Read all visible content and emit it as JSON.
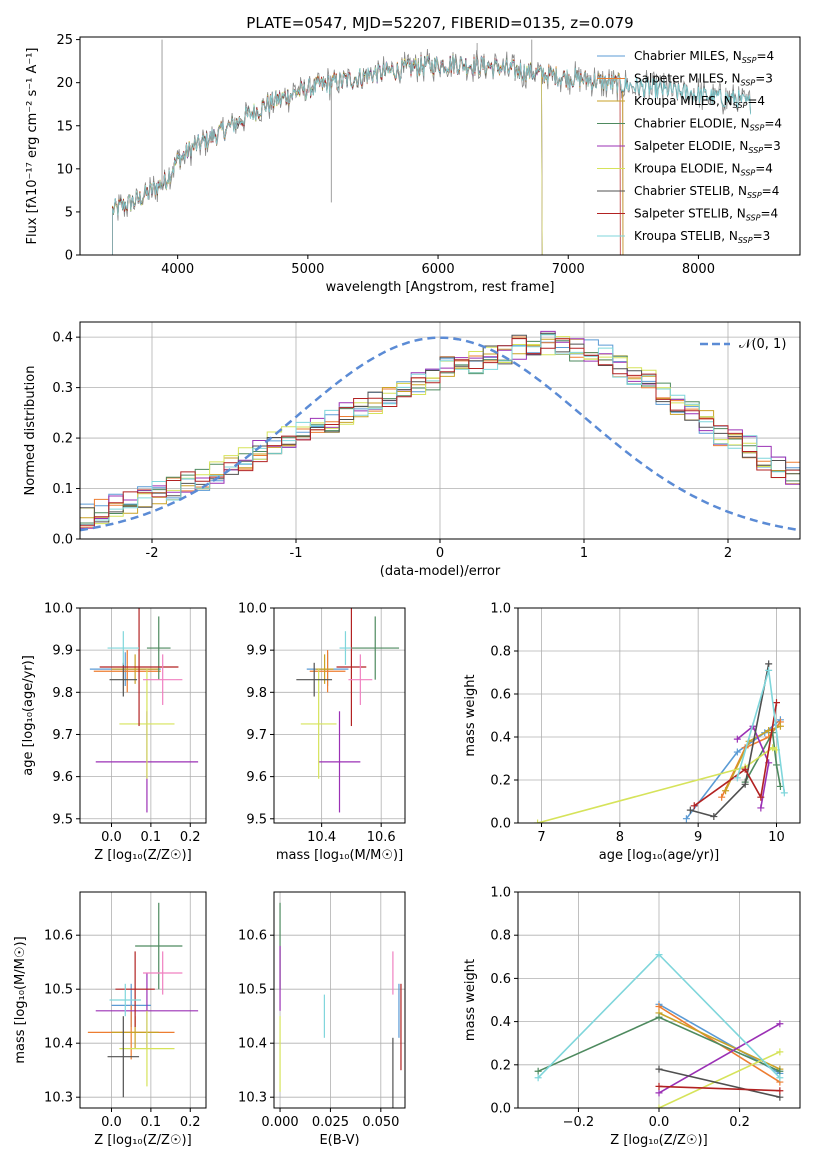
{
  "figure_title": "PLATE=0547, MJD=52207, FIBERID=0135, z=0.079",
  "colors": {
    "Chabrier MILES": "#5B9BD5",
    "Salpeter MILES": "#ED7D31",
    "Kroupa MILES": "#C9A227",
    "Chabrier ELODIE": "#4E8A5F",
    "Salpeter ELODIE": "#9B30B5",
    "Kroupa ELODIE": "#D6E35A",
    "Chabrier STELIB": "#505050",
    "Salpeter STELIB": "#B22222",
    "Kroupa STELIB": "#7FD6DB",
    "pink": "#F080C0",
    "gaussian": "#5B8BD5"
  },
  "chart_data": [
    {
      "id": "spectrum",
      "type": "line",
      "title": "PLATE=0547, MJD=52207, FIBERID=0135, z=0.079",
      "xlabel": "wavelength [Angstrom, rest frame]",
      "ylabel": "Flux [fλ10⁻¹⁷ erg cm⁻² s⁻¹ A⁻¹]",
      "xlim": [
        3250,
        8780
      ],
      "ylim": [
        0,
        25.3
      ],
      "xticks": [
        4000,
        5000,
        6000,
        7000,
        8000
      ],
      "yticks": [
        0,
        5,
        10,
        15,
        20,
        25
      ],
      "grid": false,
      "legend_position": "upper-right",
      "series": [
        {
          "name": "Chabrier MILES, N_SSP=4",
          "label_html": "Chabrier MILES, N<tspan font-size='9' dy='3'>SSP</tspan><tspan dy='-3'>=4</tspan>"
        },
        {
          "name": "Salpeter MILES, N_SSP=3"
        },
        {
          "name": "Kroupa MILES, N_SSP=4"
        },
        {
          "name": "Chabrier ELODIE, N_SSP=4"
        },
        {
          "name": "Salpeter ELODIE, N_SSP=3"
        },
        {
          "name": "Kroupa ELODIE, N_SSP=4"
        },
        {
          "name": "Chabrier STELIB, N_SSP=4"
        },
        {
          "name": "Salpeter STELIB, N_SSP=4"
        },
        {
          "name": "Kroupa STELIB, N_SSP=3"
        }
      ],
      "continuum": {
        "x": [
          3500,
          3700,
          3900,
          4000,
          4100,
          4300,
          4500,
          4700,
          4900,
          5100,
          5300,
          5500,
          5700,
          5900,
          6100,
          6300,
          6500,
          6700,
          6900,
          7100,
          7300,
          7500,
          7700,
          7900,
          8100,
          8300,
          8400
        ],
        "y": [
          5.2,
          6.5,
          8.5,
          11.0,
          12.3,
          14.0,
          15.8,
          17.6,
          18.8,
          19.7,
          20.3,
          21.0,
          21.5,
          22.0,
          22.2,
          22.0,
          21.7,
          21.2,
          20.8,
          20.4,
          20.0,
          19.6,
          19.2,
          18.8,
          18.4,
          18.0,
          17.5
        ]
      },
      "spikes": [
        {
          "x": 3880,
          "y": 25.0
        },
        {
          "x": 5180,
          "y": 6.1
        },
        {
          "x": 6720,
          "y": 25.0
        },
        {
          "x": 6300,
          "y": 24.6
        }
      ]
    },
    {
      "id": "residual_hist",
      "type": "step",
      "xlabel": "(data-model)/error",
      "ylabel": "Normed distribution",
      "xlim": [
        -2.5,
        2.5
      ],
      "ylim": [
        0,
        0.43
      ],
      "xticks": [
        -2,
        -1,
        0,
        1,
        2
      ],
      "yticks": [
        0.0,
        0.1,
        0.2,
        0.3,
        0.4
      ],
      "grid": true,
      "legend_position": "upper-right",
      "legend": "𝒩(0, 1)",
      "bin_width": 0.1,
      "bins_start": -2.5,
      "base_hist": [
        0.045,
        0.055,
        0.065,
        0.075,
        0.085,
        0.09,
        0.1,
        0.11,
        0.12,
        0.135,
        0.15,
        0.16,
        0.175,
        0.19,
        0.205,
        0.215,
        0.22,
        0.235,
        0.25,
        0.26,
        0.27,
        0.28,
        0.3,
        0.31,
        0.32,
        0.34,
        0.345,
        0.35,
        0.36,
        0.37,
        0.38,
        0.385,
        0.39,
        0.385,
        0.375,
        0.37,
        0.36,
        0.345,
        0.33,
        0.31,
        0.29,
        0.27,
        0.25,
        0.23,
        0.21,
        0.195,
        0.18,
        0.16,
        0.145,
        0.13
      ],
      "gaussian": {
        "mu": 0,
        "sigma": 1
      }
    },
    {
      "id": "age_vs_Z",
      "type": "errorbar",
      "xlabel": "Z [log₁₀(Z/Z☉)]",
      "ylabel": "age  [log₁₀(age/yr)]",
      "xlim": [
        -0.08,
        0.24
      ],
      "ylim": [
        9.49,
        10.0
      ],
      "xticks": [
        0.0,
        0.1,
        0.2
      ],
      "yticks": [
        9.5,
        9.6,
        9.7,
        9.8,
        9.9,
        10.0
      ],
      "points": [
        {
          "c": "Chabrier MILES",
          "x": 0.035,
          "xe": 0.09,
          "y": 9.855,
          "ye": 0.04
        },
        {
          "c": "Salpeter MILES",
          "x": 0.04,
          "xe": 0.085,
          "y": 9.85,
          "ye": 0.05
        },
        {
          "c": "Kroupa MILES",
          "x": 0.06,
          "xe": 0.06,
          "y": 9.855,
          "ye": 0.035
        },
        {
          "c": "Chabrier ELODIE",
          "x": 0.12,
          "xe": 0.03,
          "y": 9.905,
          "ye": 0.075
        },
        {
          "c": "Salpeter ELODIE",
          "x": 0.09,
          "xe": 0.13,
          "y": 9.635,
          "ye": 0.12
        },
        {
          "c": "Kroupa ELODIE",
          "x": 0.09,
          "xe": 0.07,
          "y": 9.725,
          "ye": 0.13
        },
        {
          "c": "Chabrier STELIB",
          "x": 0.03,
          "xe": 0.035,
          "y": 9.83,
          "ye": 0.04
        },
        {
          "c": "Salpeter STELIB",
          "x": 0.07,
          "xe": 0.1,
          "y": 9.86,
          "ye": 0.14
        },
        {
          "c": "Kroupa STELIB",
          "x": 0.03,
          "xe": 0.04,
          "y": 9.905,
          "ye": 0.04
        },
        {
          "c": "pink",
          "x": 0.13,
          "xe": 0.05,
          "y": 9.83,
          "ye": 0.06
        }
      ]
    },
    {
      "id": "age_vs_mass",
      "type": "errorbar",
      "xlabel": "mass [log₁₀(M/M☉)]",
      "ylabel": "",
      "xlim": [
        10.24,
        10.68
      ],
      "ylim": [
        9.49,
        10.0
      ],
      "xticks": [
        10.4,
        10.6
      ],
      "yticks": [
        9.5,
        9.6,
        9.7,
        9.8,
        9.9,
        10.0
      ],
      "points": [
        {
          "c": "Chabrier MILES",
          "x": 10.42,
          "xe": 0.07,
          "y": 9.855,
          "ye": 0.04
        },
        {
          "c": "Salpeter MILES",
          "x": 10.42,
          "xe": 0.06,
          "y": 9.85,
          "ye": 0.05
        },
        {
          "c": "Kroupa MILES",
          "x": 10.41,
          "xe": 0.03,
          "y": 9.855,
          "ye": 0.035
        },
        {
          "c": "Chabrier ELODIE",
          "x": 10.58,
          "xe": 0.08,
          "y": 9.905,
          "ye": 0.075
        },
        {
          "c": "Salpeter ELODIE",
          "x": 10.46,
          "xe": 0.07,
          "y": 9.635,
          "ye": 0.12
        },
        {
          "c": "Kroupa ELODIE",
          "x": 10.39,
          "xe": 0.06,
          "y": 9.725,
          "ye": 0.13
        },
        {
          "c": "Chabrier STELIB",
          "x": 10.375,
          "xe": 0.06,
          "y": 9.83,
          "ye": 0.04
        },
        {
          "c": "Salpeter STELIB",
          "x": 10.5,
          "xe": 0.05,
          "y": 9.86,
          "ye": 0.14
        },
        {
          "c": "Kroupa STELIB",
          "x": 10.48,
          "xe": 0.02,
          "y": 9.905,
          "ye": 0.04
        },
        {
          "c": "pink",
          "x": 10.53,
          "xe": 0.04,
          "y": 9.83,
          "ye": 0.06
        }
      ]
    },
    {
      "id": "weight_vs_age",
      "type": "line",
      "xlabel": "age  [log₁₀(age/yr)]",
      "ylabel": "mass weight",
      "xlim": [
        6.7,
        10.3
      ],
      "ylim": [
        0,
        1.0
      ],
      "xticks": [
        7,
        8,
        9,
        10
      ],
      "yticks": [
        0.0,
        0.2,
        0.4,
        0.6,
        0.8,
        1.0
      ],
      "grid": true,
      "series": [
        {
          "c": "Chabrier MILES",
          "x": [
            8.85,
            9.5,
            9.85,
            10.05
          ],
          "y": [
            0.02,
            0.33,
            0.42,
            0.48
          ]
        },
        {
          "c": "Salpeter MILES",
          "x": [
            9.3,
            9.6,
            9.9,
            10.05
          ],
          "y": [
            0.12,
            0.35,
            0.4,
            0.47
          ]
        },
        {
          "c": "Kroupa MILES",
          "x": [
            9.35,
            9.65,
            9.9,
            10.05
          ],
          "y": [
            0.15,
            0.38,
            0.43,
            0.45
          ]
        },
        {
          "c": "Chabrier ELODIE",
          "x": [
            9.6,
            9.95,
            10.0,
            10.05
          ],
          "y": [
            0.19,
            0.42,
            0.27,
            0.17
          ]
        },
        {
          "c": "Salpeter ELODIE",
          "x": [
            9.5,
            9.7,
            9.9,
            9.8
          ],
          "y": [
            0.39,
            0.45,
            0.28,
            0.07
          ]
        },
        {
          "c": "Kroupa ELODIE",
          "x": [
            6.95,
            9.6,
            9.95,
            10.0
          ],
          "y": [
            0.0,
            0.26,
            0.35,
            0.34
          ]
        },
        {
          "c": "Chabrier STELIB",
          "x": [
            8.9,
            9.2,
            9.6,
            9.9
          ],
          "y": [
            0.06,
            0.03,
            0.18,
            0.74
          ]
        },
        {
          "c": "Salpeter STELIB",
          "x": [
            8.95,
            9.6,
            9.8,
            10.0
          ],
          "y": [
            0.08,
            0.25,
            0.12,
            0.56
          ]
        },
        {
          "c": "Kroupa STELIB",
          "x": [
            9.5,
            9.9,
            10.1
          ],
          "y": [
            0.21,
            0.71,
            0.14
          ]
        }
      ]
    },
    {
      "id": "mass_vs_Z",
      "type": "errorbar",
      "xlabel": "Z [log₁₀(Z/Z☉)]",
      "ylabel": "mass [log₁₀(M/M☉)]",
      "xlim": [
        -0.08,
        0.24
      ],
      "ylim": [
        10.28,
        10.68
      ],
      "xticks": [
        0.0,
        0.1,
        0.2
      ],
      "yticks": [
        10.3,
        10.4,
        10.5,
        10.6
      ],
      "points": [
        {
          "c": "Chabrier MILES",
          "x": 0.05,
          "xe": 0.05,
          "y": 10.47,
          "ye": 0.04
        },
        {
          "c": "Salpeter MILES",
          "x": 0.05,
          "xe": 0.11,
          "y": 10.42,
          "ye": 0.05
        },
        {
          "c": "Kroupa MILES",
          "x": 0.06,
          "xe": 0.06,
          "y": 10.42,
          "ye": 0.03
        },
        {
          "c": "Chabrier ELODIE",
          "x": 0.12,
          "xe": 0.06,
          "y": 10.58,
          "ye": 0.08
        },
        {
          "c": "Salpeter ELODIE",
          "x": 0.09,
          "xe": 0.13,
          "y": 10.46,
          "ye": 0.07
        },
        {
          "c": "Kroupa ELODIE",
          "x": 0.09,
          "xe": 0.07,
          "y": 10.39,
          "ye": 0.07
        },
        {
          "c": "Chabrier STELIB",
          "x": 0.03,
          "xe": 0.04,
          "y": 10.375,
          "ye": 0.075
        },
        {
          "c": "Salpeter STELIB",
          "x": 0.06,
          "xe": 0.05,
          "y": 10.5,
          "ye": 0.07
        },
        {
          "c": "Kroupa STELIB",
          "x": 0.035,
          "xe": 0.04,
          "y": 10.48,
          "ye": 0.03
        },
        {
          "c": "pink",
          "x": 0.13,
          "xe": 0.05,
          "y": 10.53,
          "ye": 0.04
        }
      ]
    },
    {
      "id": "mass_vs_ebv",
      "type": "errorbar",
      "xlabel": "E(B-V)",
      "ylabel": "",
      "xlim": [
        -0.003,
        0.062
      ],
      "ylim": [
        10.28,
        10.68
      ],
      "xticks": [
        0.0,
        0.025,
        0.05
      ],
      "xticklabels": [
        "0.000",
        "0.025",
        "0.050"
      ],
      "yticks": [
        10.3,
        10.4,
        10.5,
        10.6
      ],
      "points": [
        {
          "c": "Chabrier ELODIE",
          "x": 0.0,
          "xe": 0,
          "y": 10.58,
          "ye": 0.08
        },
        {
          "c": "Salpeter ELODIE",
          "x": 0.0,
          "xe": 0,
          "y": 10.52,
          "ye": 0.06
        },
        {
          "c": "Kroupa ELODIE",
          "x": 0.0,
          "xe": 0,
          "y": 10.38,
          "ye": 0.07
        },
        {
          "c": "Kroupa STELIB",
          "x": 0.022,
          "xe": 0,
          "y": 10.45,
          "ye": 0.04
        },
        {
          "c": "pink",
          "x": 0.056,
          "xe": 0,
          "y": 10.53,
          "ye": 0.04
        },
        {
          "c": "Chabrier STELIB",
          "x": 0.056,
          "xe": 0,
          "y": 10.34,
          "ye": 0.07
        },
        {
          "c": "Chabrier MILES",
          "x": 0.059,
          "xe": 0,
          "y": 10.46,
          "ye": 0.05
        },
        {
          "c": "Salpeter STELIB",
          "x": 0.06,
          "xe": 0,
          "y": 10.43,
          "ye": 0.08
        }
      ]
    },
    {
      "id": "weight_vs_Z",
      "type": "line",
      "xlabel": "Z [log₁₀(Z/Z☉)]",
      "ylabel": "mass weight",
      "xlim": [
        -0.35,
        0.35
      ],
      "ylim": [
        0,
        1.0
      ],
      "xticks": [
        -0.2,
        0.0,
        0.2
      ],
      "xticklabels": [
        "−0.2",
        "0.0",
        "0.2"
      ],
      "yticks": [
        0.0,
        0.2,
        0.4,
        0.6,
        0.8,
        1.0
      ],
      "grid": true,
      "series": [
        {
          "c": "Chabrier MILES",
          "x": [
            0.0,
            0.3
          ],
          "y": [
            0.48,
            0.16
          ]
        },
        {
          "c": "Salpeter MILES",
          "x": [
            0.0,
            0.3
          ],
          "y": [
            0.47,
            0.12
          ]
        },
        {
          "c": "Kroupa MILES",
          "x": [
            0.0,
            0.3
          ],
          "y": [
            0.44,
            0.18
          ]
        },
        {
          "c": "Chabrier ELODIE",
          "x": [
            -0.3,
            0.0,
            0.3
          ],
          "y": [
            0.17,
            0.42,
            0.17
          ]
        },
        {
          "c": "Salpeter ELODIE",
          "x": [
            0.0,
            0.3
          ],
          "y": [
            0.07,
            0.39
          ]
        },
        {
          "c": "Kroupa ELODIE",
          "x": [
            0.0,
            0.3
          ],
          "y": [
            0.0,
            0.26
          ]
        },
        {
          "c": "Chabrier STELIB",
          "x": [
            0.0,
            0.3
          ],
          "y": [
            0.18,
            0.05
          ]
        },
        {
          "c": "Salpeter STELIB",
          "x": [
            0.0,
            0.3
          ],
          "y": [
            0.1,
            0.08
          ]
        },
        {
          "c": "Kroupa STELIB",
          "x": [
            -0.3,
            0.0,
            0.3
          ],
          "y": [
            0.14,
            0.71,
            0.14
          ]
        }
      ]
    }
  ]
}
